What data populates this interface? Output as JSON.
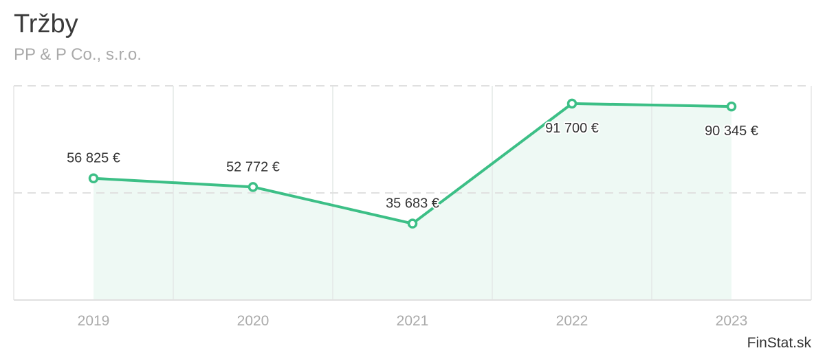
{
  "chart_data": {
    "type": "area",
    "title": "Tržby",
    "subtitle": "PP & P Co., s.r.o.",
    "credit": "FinStat.sk",
    "categories": [
      "2019",
      "2020",
      "2021",
      "2022",
      "2023"
    ],
    "values": [
      56825,
      52772,
      35683,
      91700,
      90345
    ],
    "data_labels": [
      "56 825 €",
      "52 772 €",
      "35 683 €",
      "91 700 €",
      "90 345 €"
    ],
    "ylim": [
      0,
      100000
    ],
    "gridlines": [
      50000,
      100000
    ],
    "xlabel": "",
    "ylabel": "",
    "color": "#3cbf86",
    "fill_color": "#eef9f4"
  }
}
